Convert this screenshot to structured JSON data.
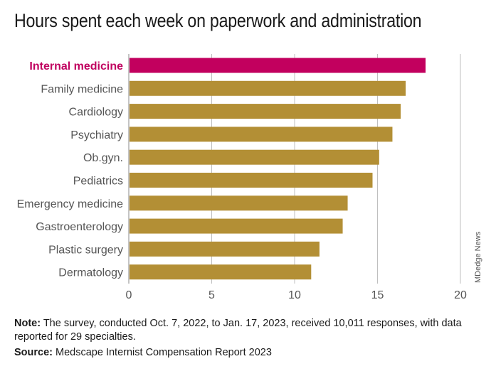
{
  "title": "Hours spent each week on paperwork and administration",
  "note": {
    "label": "Note:",
    "text": " The survey, conducted Oct. 7, 2022, to Jan. 17, 2023, received 10,011 responses, with data reported for 29 specialties."
  },
  "source": {
    "label": "Source:",
    "text": " Medscape Internist Compensation Report 2023"
  },
  "credit": "MDedge News",
  "colors": {
    "highlight": "#c2005e",
    "bar": "#b38f35",
    "grid": "#bfbfbf",
    "axis": "#888888"
  },
  "chart_data": {
    "type": "bar",
    "orientation": "horizontal",
    "title": "Hours spent each week on paperwork and administration",
    "categories": [
      "Internal medicine",
      "Family medicine",
      "Cardiology",
      "Psychiatry",
      "Ob.gyn.",
      "Pediatrics",
      "Emergency medicine",
      "Gastroenterology",
      "Plastic surgery",
      "Dermatology"
    ],
    "values": [
      17.9,
      16.7,
      16.4,
      15.9,
      15.1,
      14.7,
      13.2,
      12.9,
      11.5,
      11.0
    ],
    "highlighted": "Internal medicine",
    "xlim": [
      0,
      20
    ],
    "xticks": [
      0,
      5,
      10,
      15,
      20
    ],
    "grid": "vertical"
  }
}
